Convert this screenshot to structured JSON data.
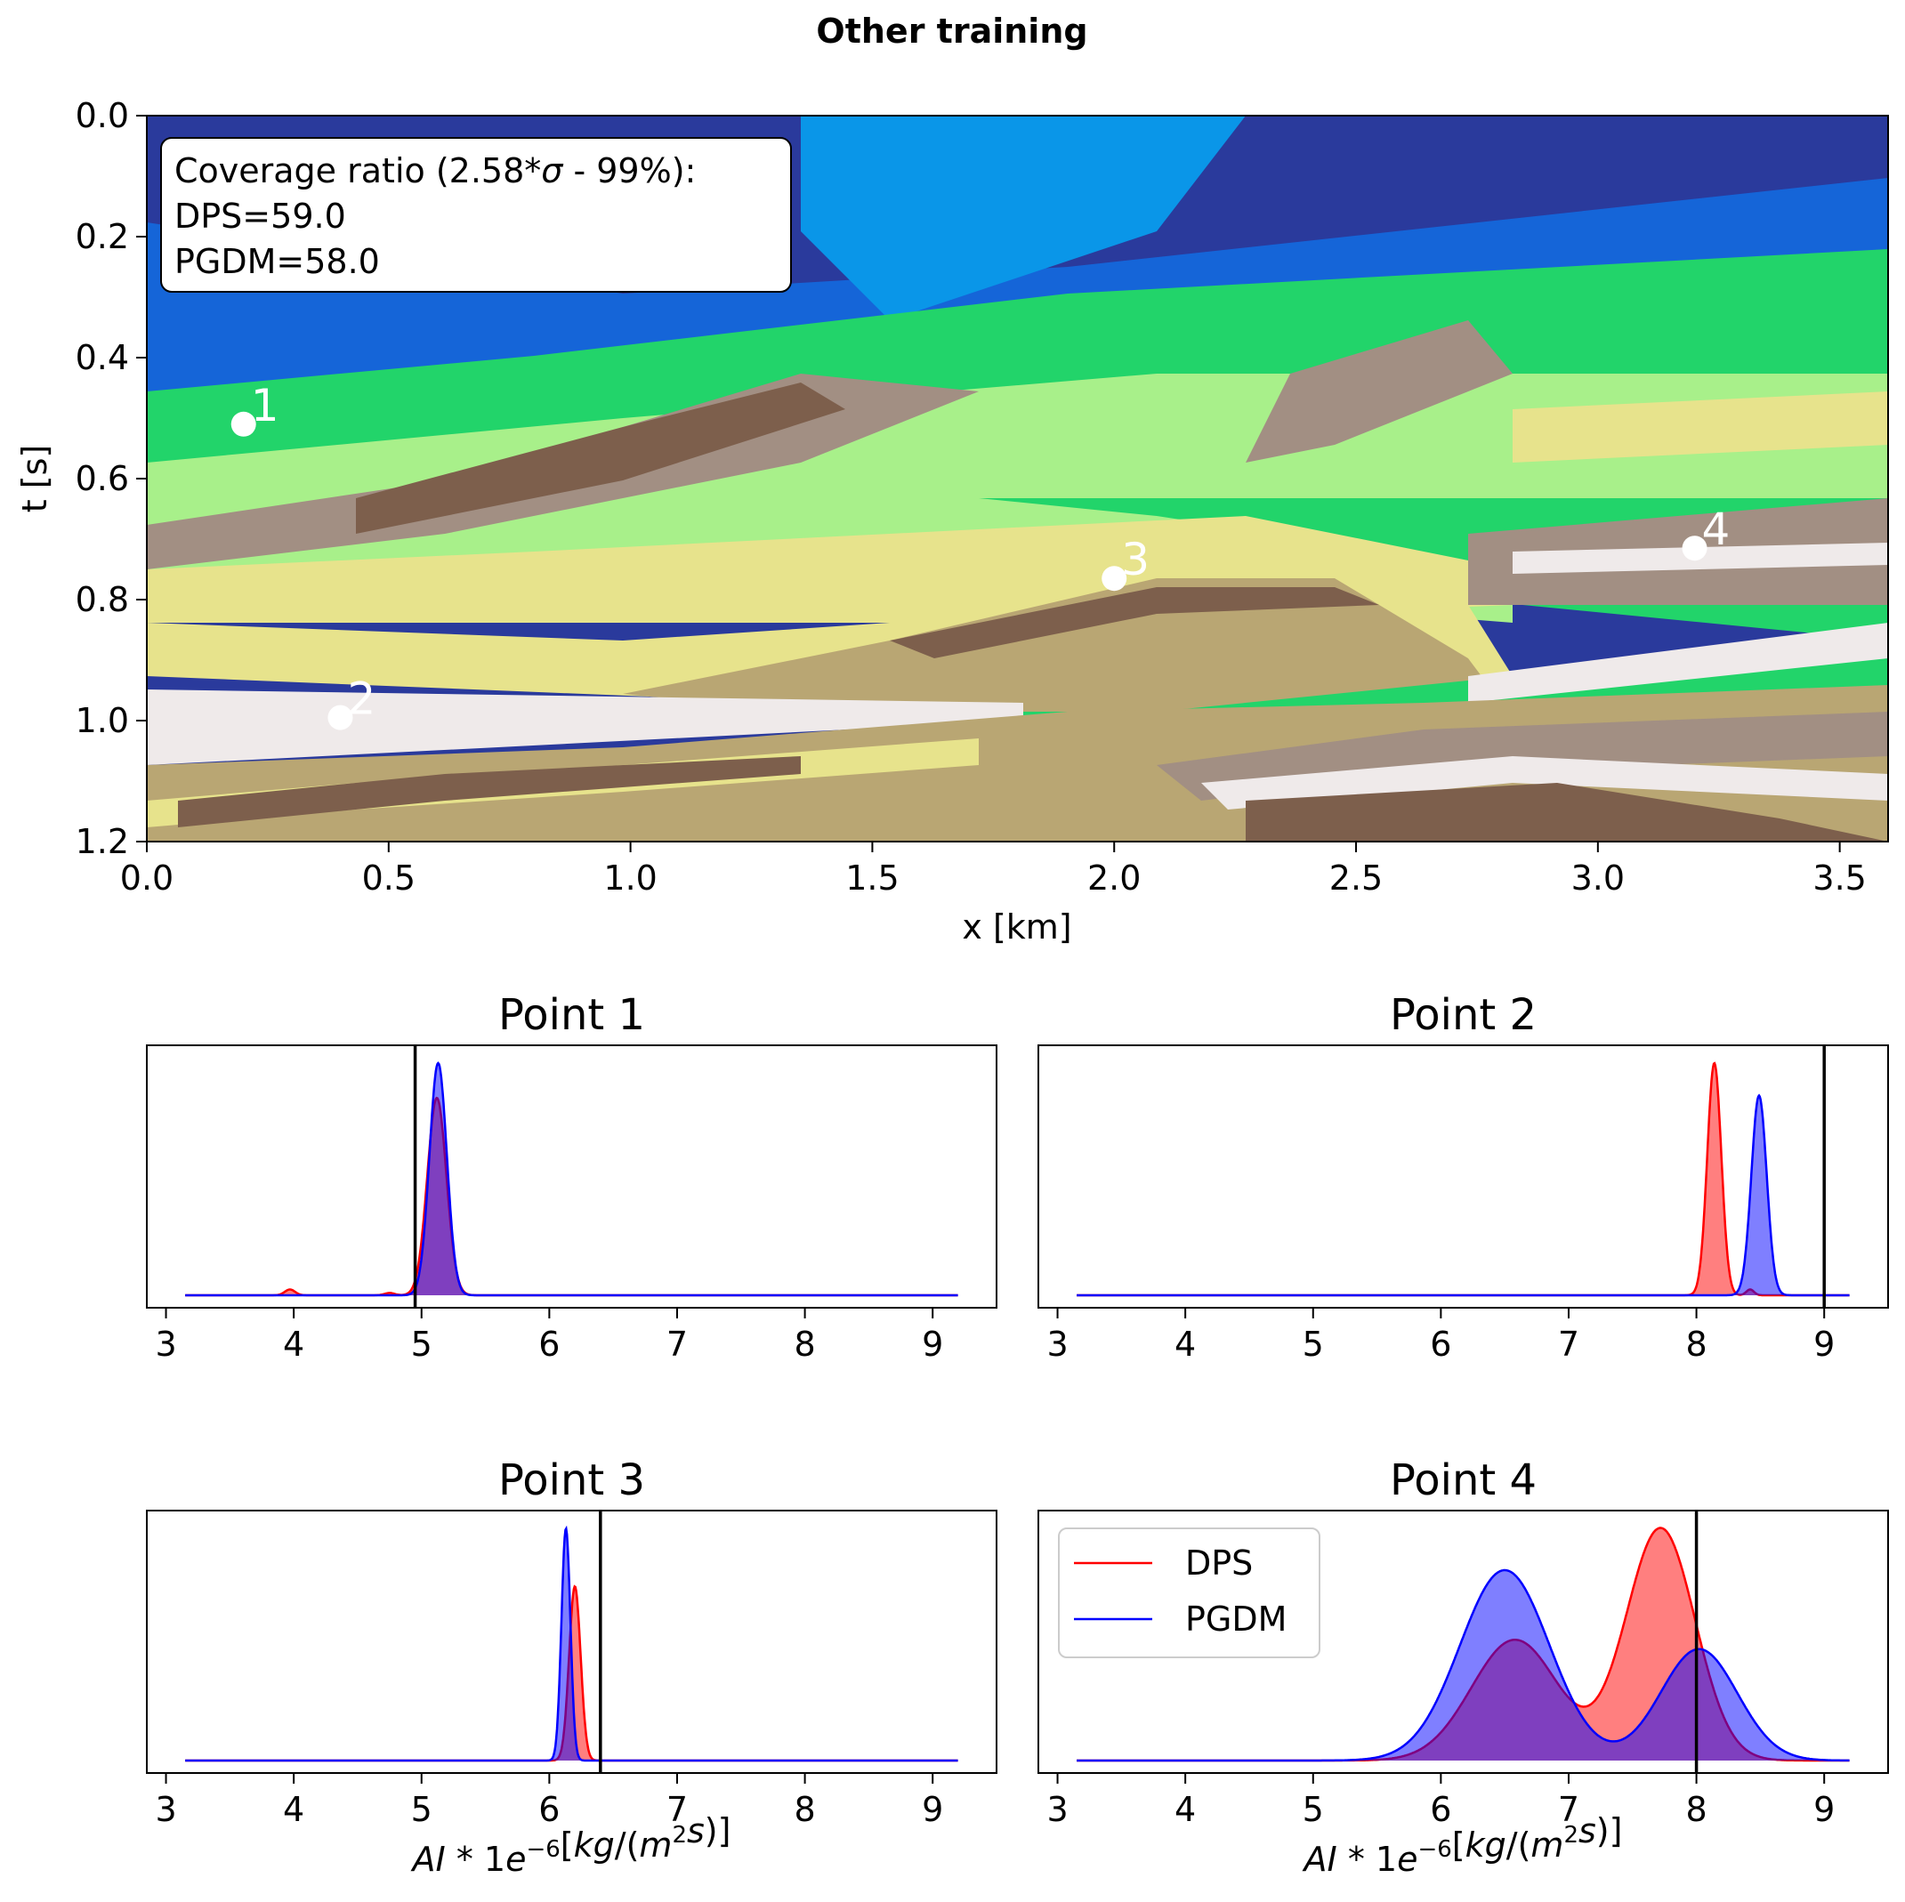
{
  "figure": {
    "suptitle": "Other training"
  },
  "colors": {
    "dps": "#ff0000",
    "pgdm": "#0000ff",
    "truth": "#000000",
    "deep_blue": "#2a3a9c",
    "blue": "#1565d8",
    "cyan": "#0a96e8",
    "green": "#22d46a",
    "light_green": "#a8f08a",
    "yellow": "#e7e38c",
    "tan": "#b9a673",
    "brown": "#7d5f4c",
    "grey_brown": "#a28f83",
    "light_grey": "#c8b9b2",
    "white": "#efeaea"
  },
  "section": {
    "xlabel": "x [km]",
    "ylabel": "t [s]",
    "xticks": [
      "0.0",
      "0.5",
      "1.0",
      "1.5",
      "2.0",
      "2.5",
      "3.0",
      "3.5"
    ],
    "yticks": [
      "0.0",
      "0.2",
      "0.4",
      "0.6",
      "0.8",
      "1.0",
      "1.2"
    ],
    "coverage_box": {
      "line1": "Coverage ratio (2.58*",
      "sigma": "σ",
      "line1_end": " - 99%):",
      "dps": "DPS=59.0",
      "pgdm": "PGDM=58.0"
    },
    "markers": [
      {
        "label": "1",
        "x_km": 0.2,
        "t_s": 0.51
      },
      {
        "label": "2",
        "x_km": 0.4,
        "t_s": 0.995
      },
      {
        "label": "3",
        "x_km": 2.0,
        "t_s": 0.765
      },
      {
        "label": "4",
        "x_km": 3.2,
        "t_s": 0.715
      }
    ]
  },
  "legend": {
    "dps": "DPS",
    "pgdm": "PGDM"
  },
  "chart_data": [
    {
      "type": "heatmap",
      "title": "Other training",
      "xlabel": "x [km]",
      "ylabel": "t [s]",
      "xlim": [
        0.0,
        3.6
      ],
      "ylim": [
        1.2,
        0.0
      ],
      "points": [
        {
          "label": "1",
          "x": 0.2,
          "t": 0.51
        },
        {
          "label": "2",
          "x": 0.4,
          "t": 0.995
        },
        {
          "label": "3",
          "x": 2.0,
          "t": 0.765
        },
        {
          "label": "4",
          "x": 3.2,
          "t": 0.715
        }
      ],
      "annotation": [
        "Coverage ratio (2.58*σ - 99%):",
        "DPS=59.0",
        "PGDM=58.0"
      ]
    },
    {
      "type": "area",
      "title": "Point 1",
      "xlabel": "",
      "xlim": [
        2.85,
        9.5
      ],
      "xticks": [
        "3",
        "4",
        "5",
        "6",
        "7",
        "8",
        "9"
      ],
      "truth": 4.95,
      "series": [
        {
          "name": "DPS",
          "components": [
            {
              "m": 5.12,
              "s": 0.075,
              "a": 0.85
            },
            {
              "m": 3.97,
              "s": 0.04,
              "a": 0.025
            },
            {
              "m": 4.75,
              "s": 0.04,
              "a": 0.01
            }
          ]
        },
        {
          "name": "PGDM",
          "components": [
            {
              "m": 5.13,
              "s": 0.068,
              "a": 1.0
            }
          ]
        }
      ]
    },
    {
      "type": "area",
      "title": "Point 2",
      "xlabel": "",
      "xlim": [
        2.85,
        9.5
      ],
      "xticks": [
        "3",
        "4",
        "5",
        "6",
        "7",
        "8",
        "9"
      ],
      "truth": 9.0,
      "series": [
        {
          "name": "DPS",
          "components": [
            {
              "m": 8.14,
              "s": 0.055,
              "a": 1.0
            },
            {
              "m": 8.42,
              "s": 0.03,
              "a": 0.025
            }
          ]
        },
        {
          "name": "PGDM",
          "components": [
            {
              "m": 8.49,
              "s": 0.06,
              "a": 0.86
            }
          ]
        }
      ]
    },
    {
      "type": "area",
      "title": "Point 3",
      "xlabel": "AI * 1e^-6 [kg/(m^2 s)]",
      "xlim": [
        2.85,
        9.5
      ],
      "xticks": [
        "3",
        "4",
        "5",
        "6",
        "7",
        "8",
        "9"
      ],
      "truth": 6.4,
      "series": [
        {
          "name": "DPS",
          "components": [
            {
              "m": 6.2,
              "s": 0.045,
              "a": 0.75
            }
          ]
        },
        {
          "name": "PGDM",
          "components": [
            {
              "m": 6.13,
              "s": 0.035,
              "a": 1.0
            }
          ]
        }
      ]
    },
    {
      "type": "area",
      "title": "Point 4",
      "xlabel": "AI * 1e^-6 [kg/(m^2 s)]",
      "xlim": [
        2.85,
        9.5
      ],
      "xticks": [
        "3",
        "4",
        "5",
        "6",
        "7",
        "8",
        "9"
      ],
      "truth": 8.0,
      "series": [
        {
          "name": "DPS",
          "components": [
            {
              "m": 6.58,
              "s": 0.34,
              "a": 0.52
            },
            {
              "m": 7.72,
              "s": 0.27,
              "a": 1.0
            }
          ]
        },
        {
          "name": "PGDM",
          "components": [
            {
              "m": 6.5,
              "s": 0.35,
              "a": 0.82
            },
            {
              "m": 8.02,
              "s": 0.3,
              "a": 0.48
            }
          ]
        }
      ]
    }
  ]
}
